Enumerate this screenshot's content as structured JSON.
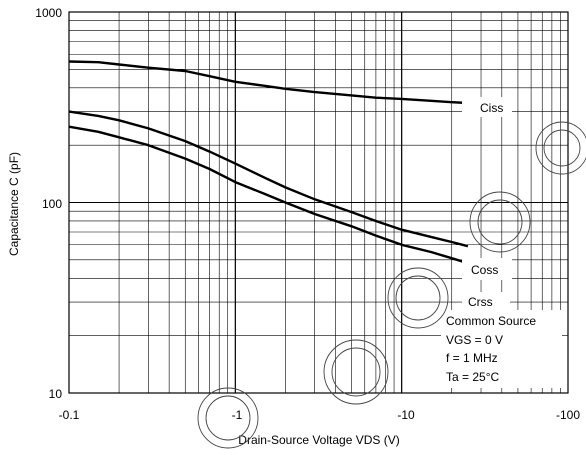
{
  "chart_data": {
    "type": "line",
    "xlabel": "Drain-Source Voltage VDS (V)",
    "ylabel": "Capacitance C (pF)",
    "x_scale": "log",
    "y_scale": "log",
    "x_ticks": [
      "-0.1",
      "-1",
      "-10",
      "-100"
    ],
    "y_ticks": [
      "10",
      "100",
      "1000"
    ],
    "xlim": [
      -0.1,
      -100
    ],
    "ylim": [
      10,
      1000
    ],
    "grid": true,
    "series": [
      {
        "name": "Ciss",
        "x": [
          -0.1,
          -0.15,
          -0.2,
          -0.3,
          -0.5,
          -0.7,
          -1,
          -1.5,
          -2,
          -3,
          -5,
          -7,
          -10,
          -15,
          -20,
          -25
        ],
        "y": [
          550,
          545,
          530,
          510,
          490,
          460,
          430,
          410,
          395,
          380,
          365,
          355,
          350,
          342,
          336,
          333
        ]
      },
      {
        "name": "Coss",
        "x": [
          -0.1,
          -0.15,
          -0.2,
          -0.3,
          -0.5,
          -0.7,
          -1,
          -1.5,
          -2,
          -3,
          -5,
          -7,
          -10,
          -15,
          -20,
          -25
        ],
        "y": [
          300,
          285,
          270,
          245,
          210,
          185,
          160,
          135,
          120,
          104,
          89,
          80,
          72,
          66,
          62,
          59
        ]
      },
      {
        "name": "Crss",
        "x": [
          -0.1,
          -0.15,
          -0.2,
          -0.3,
          -0.5,
          -0.7,
          -1,
          -1.5,
          -2,
          -3,
          -5,
          -7,
          -10,
          -15,
          -20,
          -25
        ],
        "y": [
          250,
          235,
          220,
          200,
          170,
          150,
          128,
          111,
          100,
          87,
          75,
          67,
          60,
          55,
          51,
          48
        ]
      }
    ],
    "annotations": [
      "Common Source",
      "VGS = 0 V",
      "f = 1 MHz",
      "Ta = 25°C"
    ]
  }
}
